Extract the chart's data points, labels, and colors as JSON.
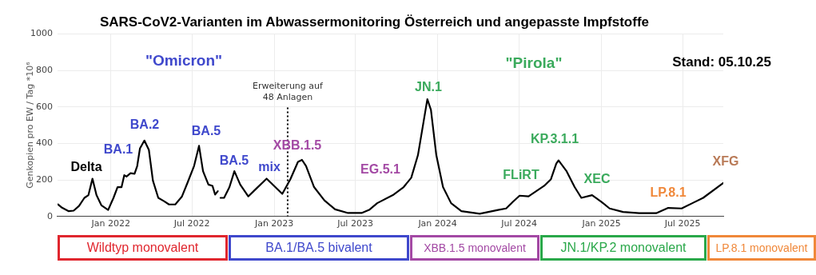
{
  "chart_data": {
    "type": "line",
    "title": "SARS-CoV2-Varianten im Abwassermonitoring Österreich und angepasste Impfstoffe",
    "ylabel": "Genkopien pro EW / Tag *10⁶",
    "xlim": [
      "2021-09-04",
      "2025-09-30"
    ],
    "ylim": [
      0,
      1000
    ],
    "yticks": [
      0,
      200,
      400,
      600,
      800,
      1000
    ],
    "xticks": [
      {
        "value": "2022-01-01",
        "label": "Jan 2022"
      },
      {
        "value": "2022-07-01",
        "label": "Jul 2022"
      },
      {
        "value": "2023-01-01",
        "label": "Jan 2023"
      },
      {
        "value": "2023-07-01",
        "label": "Jul 2023"
      },
      {
        "value": "2024-01-01",
        "label": "Jan 2024"
      },
      {
        "value": "2024-07-01",
        "label": "Jul 2024"
      },
      {
        "value": "2025-01-01",
        "label": "Jan 2025"
      },
      {
        "value": "2025-07-01",
        "label": "Jul 2025"
      }
    ],
    "grid": true,
    "legend": false,
    "marker": "none",
    "line_style": "solid",
    "series": [
      {
        "color": "#000000",
        "x": [
          "2021-09-05",
          "2021-09-14",
          "2021-09-29",
          "2021-10-10",
          "2021-10-22",
          "2021-11-03",
          "2021-11-12",
          "2021-11-21",
          "2021-11-30",
          "2021-12-11",
          "2021-12-26",
          "2022-01-07",
          "2022-01-16",
          "2022-01-25",
          "2022-01-31",
          "2022-02-05",
          "2022-02-14",
          "2022-02-23",
          "2022-03-01",
          "2022-03-07",
          "2022-03-17",
          "2022-03-27",
          "2022-04-05",
          "2022-04-17",
          "2022-04-29",
          "2022-05-11",
          "2022-05-25",
          "2022-06-09",
          "2022-06-21",
          "2022-07-06",
          "2022-07-17",
          "2022-07-26",
          "2022-08-07",
          "2022-08-16",
          "2022-08-22",
          "2022-08-28",
          "2022-08-31",
          "2022-09-03",
          "2022-09-11",
          "2022-09-23",
          "2022-10-04",
          "2022-10-17",
          "2022-11-04",
          "2022-11-22",
          "2022-12-15",
          "2023-01-19",
          "2023-02-06",
          "2023-02-23",
          "2023-03-04",
          "2023-03-13",
          "2023-03-31",
          "2023-04-23",
          "2023-05-17",
          "2023-06-15",
          "2023-07-15",
          "2023-08-01",
          "2023-08-19",
          "2023-09-23",
          "2023-10-17",
          "2023-11-03",
          "2023-11-18",
          "2023-11-30",
          "2023-12-09",
          "2023-12-17",
          "2023-12-29",
          "2024-01-13",
          "2024-01-31",
          "2024-02-23",
          "2024-04-04",
          "2024-05-15",
          "2024-06-02",
          "2024-06-17",
          "2024-07-02",
          "2024-07-22",
          "2024-08-26",
          "2024-09-10",
          "2024-09-22",
          "2024-09-27",
          "2024-10-15",
          "2024-11-02",
          "2024-11-17",
          "2024-12-11",
          "2025-01-01",
          "2025-01-19",
          "2025-02-18",
          "2025-03-26",
          "2025-05-03",
          "2025-05-30",
          "2025-06-29",
          "2025-07-23",
          "2025-08-16",
          "2025-09-30"
        ],
        "values": [
          66,
          48,
          29,
          32,
          58,
          102,
          117,
          207,
          117,
          61,
          36,
          102,
          161,
          161,
          226,
          219,
          237,
          234,
          277,
          372,
          416,
          365,
          197,
          102,
          85,
          66,
          66,
          110,
          183,
          277,
          387,
          248,
          175,
          168,
          120,
          139,
          null,
          102,
          102,
          161,
          248,
          175,
          110,
          153,
          207,
          124,
          204,
          299,
          310,
          277,
          161,
          88,
          39,
          19,
          19,
          36,
          73,
          117,
          161,
          212,
          336,
          511,
          642,
          584,
          336,
          161,
          73,
          29,
          15,
          36,
          44,
          80,
          114,
          110,
          168,
          204,
          290,
          307,
          248,
          161,
          102,
          117,
          80,
          44,
          25,
          18,
          18,
          47,
          44,
          73,
          102,
          183
        ]
      }
    ],
    "ref_lines": [
      {
        "axis": "x",
        "value": "2023-01-31",
        "label": "Erweiterung auf 48 Anlagen",
        "line_style": "dotted",
        "color": "#000000"
      }
    ],
    "annotations": [
      "Delta",
      "BA.1",
      "BA.2",
      "BA.5",
      "BA.5",
      "mix",
      "XBB.1.5",
      "EG.5.1",
      "JN.1",
      "FLiRT",
      "KP.3.1.1",
      "XEC",
      "LP.8.1",
      "XFG",
      "\"Omicron\"",
      "\"Pirola\"",
      "Stand: 05.10.25",
      "Wildtyp monovalent",
      "BA.1/BA.5 bivalent",
      "XBB.1.5 monovalent",
      "JN.1/KP.2 monovalent",
      "LP.8.1 monovalent"
    ]
  }
}
